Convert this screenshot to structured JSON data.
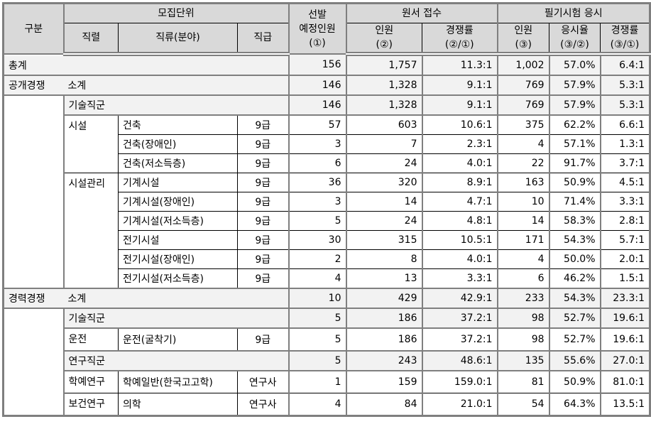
{
  "header": {
    "gubun": "구분",
    "unit": "모집단위",
    "series": "직렬",
    "field": "직류(분야)",
    "grade": "직급",
    "planned": [
      "선발",
      "예정인원",
      "(①)"
    ],
    "application": "원서 접수",
    "app_count": [
      "인원",
      "(②)"
    ],
    "app_ratio": [
      "경쟁률",
      "(②/①)"
    ],
    "exam": "필기시험 응시",
    "exam_count": [
      "인원",
      "(③)"
    ],
    "exam_rate": [
      "응시율",
      "(③/②)"
    ],
    "exam_ratio": [
      "경쟁률",
      "(③/①)"
    ]
  },
  "rows": [
    {
      "type": "total",
      "gubun": "총계",
      "label": "",
      "values": [
        "156",
        "1,757",
        "11.3:1",
        "1,002",
        "57.0%",
        "6.4:1"
      ]
    },
    {
      "type": "subtotal",
      "gubun": "공개경쟁",
      "label": "소계",
      "values": [
        "146",
        "1,328",
        "9.1:1",
        "769",
        "57.9%",
        "5.3:1"
      ]
    },
    {
      "type": "group",
      "label": "기술직군",
      "values": [
        "146",
        "1,328",
        "9.1:1",
        "769",
        "57.9%",
        "5.3:1"
      ]
    },
    {
      "type": "detail",
      "series": "시설",
      "field": "건축",
      "grade": "9급",
      "values": [
        "57",
        "603",
        "10.6:1",
        "375",
        "62.2%",
        "6.6:1"
      ]
    },
    {
      "type": "detail",
      "series": "",
      "field": "건축(장애인)",
      "grade": "9급",
      "values": [
        "3",
        "7",
        "2.3:1",
        "4",
        "57.1%",
        "1.3:1"
      ]
    },
    {
      "type": "detail",
      "series": "",
      "field": "건축(저소득층)",
      "grade": "9급",
      "values": [
        "6",
        "24",
        "4.0:1",
        "22",
        "91.7%",
        "3.7:1"
      ]
    },
    {
      "type": "detail",
      "series": "시설관리",
      "field": "기계시설",
      "grade": "9급",
      "values": [
        "36",
        "320",
        "8.9:1",
        "163",
        "50.9%",
        "4.5:1"
      ]
    },
    {
      "type": "detail",
      "series": "",
      "field": "기계시설(장애인)",
      "grade": "9급",
      "values": [
        "3",
        "14",
        "4.7:1",
        "10",
        "71.4%",
        "3.3:1"
      ]
    },
    {
      "type": "detail",
      "series": "",
      "field": "기계시설(저소득층)",
      "grade": "9급",
      "values": [
        "5",
        "24",
        "4.8:1",
        "14",
        "58.3%",
        "2.8:1"
      ]
    },
    {
      "type": "detail",
      "series": "",
      "field": "전기시설",
      "grade": "9급",
      "values": [
        "30",
        "315",
        "10.5:1",
        "171",
        "54.3%",
        "5.7:1"
      ]
    },
    {
      "type": "detail",
      "series": "",
      "field": "전기시설(장애인)",
      "grade": "9급",
      "values": [
        "2",
        "8",
        "4.0:1",
        "4",
        "50.0%",
        "2.0:1"
      ]
    },
    {
      "type": "detail",
      "series": "",
      "field": "전기시설(저소득층)",
      "grade": "9급",
      "values": [
        "4",
        "13",
        "3.3:1",
        "6",
        "46.2%",
        "1.5:1"
      ]
    },
    {
      "type": "subtotal",
      "gubun": "경력경쟁",
      "label": "소계",
      "values": [
        "10",
        "429",
        "42.9:1",
        "233",
        "54.3%",
        "23.3:1"
      ]
    },
    {
      "type": "group",
      "label": "기술직군",
      "values": [
        "5",
        "186",
        "37.2:1",
        "98",
        "52.7%",
        "19.6:1"
      ]
    },
    {
      "type": "detail",
      "series": "운전",
      "field": "운전(굴착기)",
      "grade": "9급",
      "values": [
        "5",
        "186",
        "37.2:1",
        "98",
        "52.7%",
        "19.6:1"
      ]
    },
    {
      "type": "group",
      "label": "연구직군",
      "values": [
        "5",
        "243",
        "48.6:1",
        "135",
        "55.6%",
        "27.0:1"
      ]
    },
    {
      "type": "detail",
      "series": "학예연구",
      "field": "학예일반(한국고고학)",
      "grade": "연구사",
      "values": [
        "1",
        "159",
        "159.0:1",
        "81",
        "50.9%",
        "81.0:1"
      ]
    },
    {
      "type": "detail",
      "series": "보건연구",
      "field": "의학",
      "grade": "연구사",
      "values": [
        "4",
        "84",
        "21.0:1",
        "54",
        "64.3%",
        "13.5:1"
      ]
    }
  ]
}
